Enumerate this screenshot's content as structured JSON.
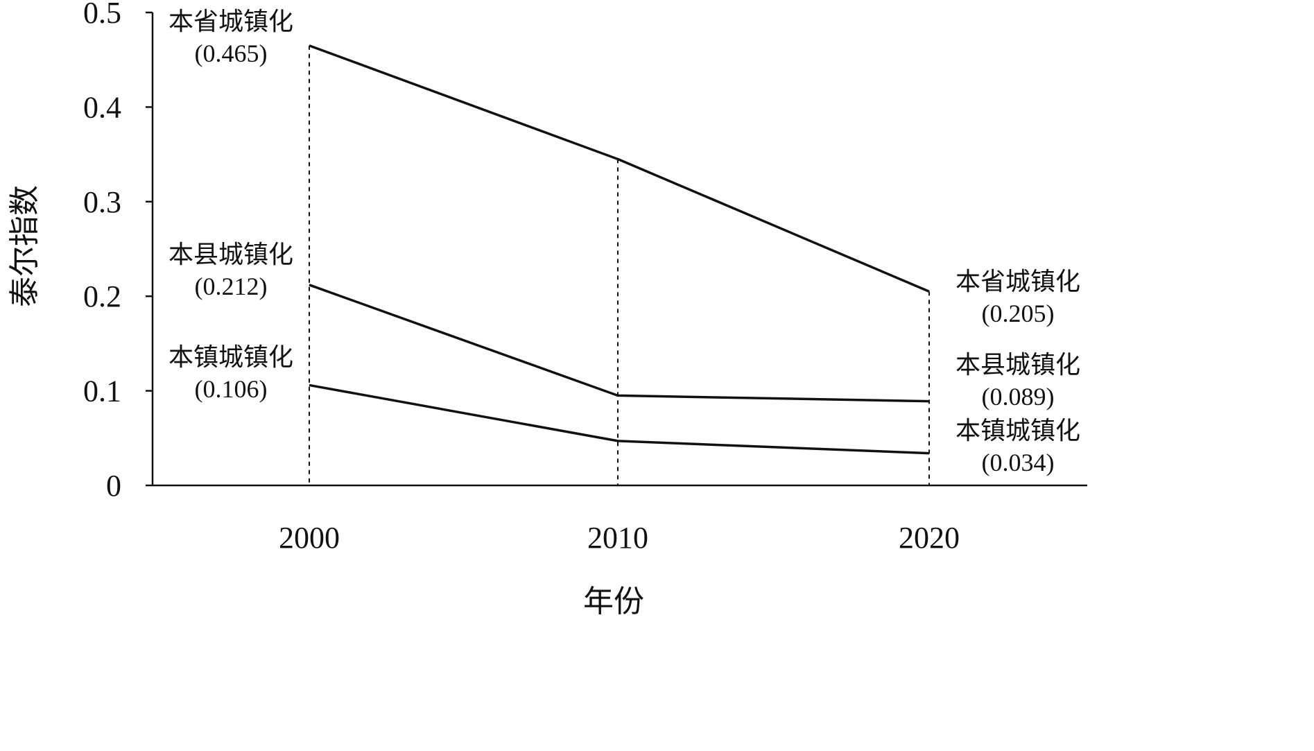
{
  "chart_data": {
    "type": "line",
    "title": "",
    "xlabel": "年份",
    "ylabel": "泰尔指数",
    "categories": [
      "2000",
      "2010",
      "2020"
    ],
    "ylim": [
      0,
      0.5
    ],
    "yticks": [
      "0",
      "0.1",
      "0.2",
      "0.3",
      "0.4",
      "0.5"
    ],
    "grid": false,
    "legend": "none",
    "series": [
      {
        "name": "本省城镇化",
        "values": [
          0.465,
          0.345,
          0.205
        ],
        "start_label": "本省城镇化",
        "start_value_label": "(0.465)",
        "end_label": "本省城镇化",
        "end_value_label": "(0.205)"
      },
      {
        "name": "本县城镇化",
        "values": [
          0.212,
          0.095,
          0.089
        ],
        "start_label": "本县城镇化",
        "start_value_label": "(0.212)",
        "end_label": "本县城镇化",
        "end_value_label": "(0.089)"
      },
      {
        "name": "本镇城镇化",
        "values": [
          0.106,
          0.047,
          0.034
        ],
        "start_label": "本镇城镇化",
        "start_value_label": "(0.106)",
        "end_label": "本镇城镇化",
        "end_value_label": "(0.034)"
      }
    ],
    "line_color": "#111111"
  }
}
